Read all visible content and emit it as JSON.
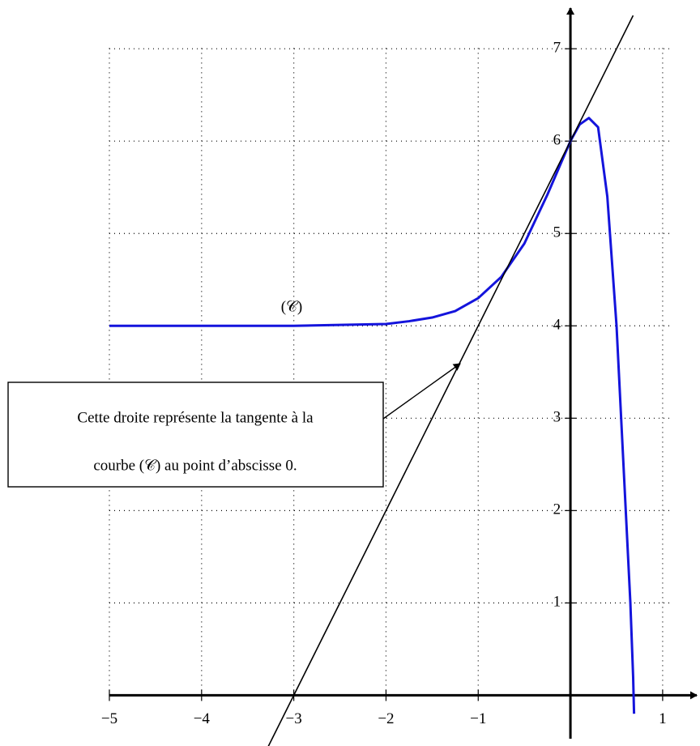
{
  "chart_data": {
    "type": "line",
    "annotation": [
      "Cette droite représente la tangente à la",
      "courbe (𝒞) au point d’abscisse 0."
    ],
    "series": [
      {
        "name": "(𝒞)",
        "color": "#1414dc",
        "x": [
          -5,
          -4,
          -3,
          -2.5,
          -2,
          -1.75,
          -1.5,
          -1.25,
          -1,
          -0.75,
          -0.5,
          -0.25,
          0,
          0.1,
          0.2,
          0.3,
          0.4,
          0.5,
          0.55,
          0.6,
          0.65,
          0.68,
          0.69
        ],
        "values": [
          4.0,
          4.0,
          4.0,
          4.01,
          4.02,
          4.05,
          4.09,
          4.16,
          4.3,
          4.53,
          4.89,
          5.42,
          6,
          6.18,
          6.25,
          6.15,
          5.4,
          4.0,
          3.0,
          2.0,
          1.0,
          0.2,
          -0.2
        ]
      },
      {
        "color": "#000000",
        "x": [
          -3.3,
          0.68
        ],
        "values": [
          -0.6,
          7.36
        ]
      }
    ],
    "xlim": [
      -5,
      1.37
    ],
    "ylim": [
      -0.47,
      7.44
    ],
    "xticks": [
      {
        "value": -5,
        "label": "−5"
      },
      {
        "value": -4,
        "label": "−4"
      },
      {
        "value": -3,
        "label": "−3"
      },
      {
        "value": -2,
        "label": "−2"
      },
      {
        "value": -1,
        "label": "−1"
      },
      1
    ],
    "yticks": [
      1,
      2,
      3,
      4,
      5,
      6,
      7
    ],
    "grid": true
  }
}
